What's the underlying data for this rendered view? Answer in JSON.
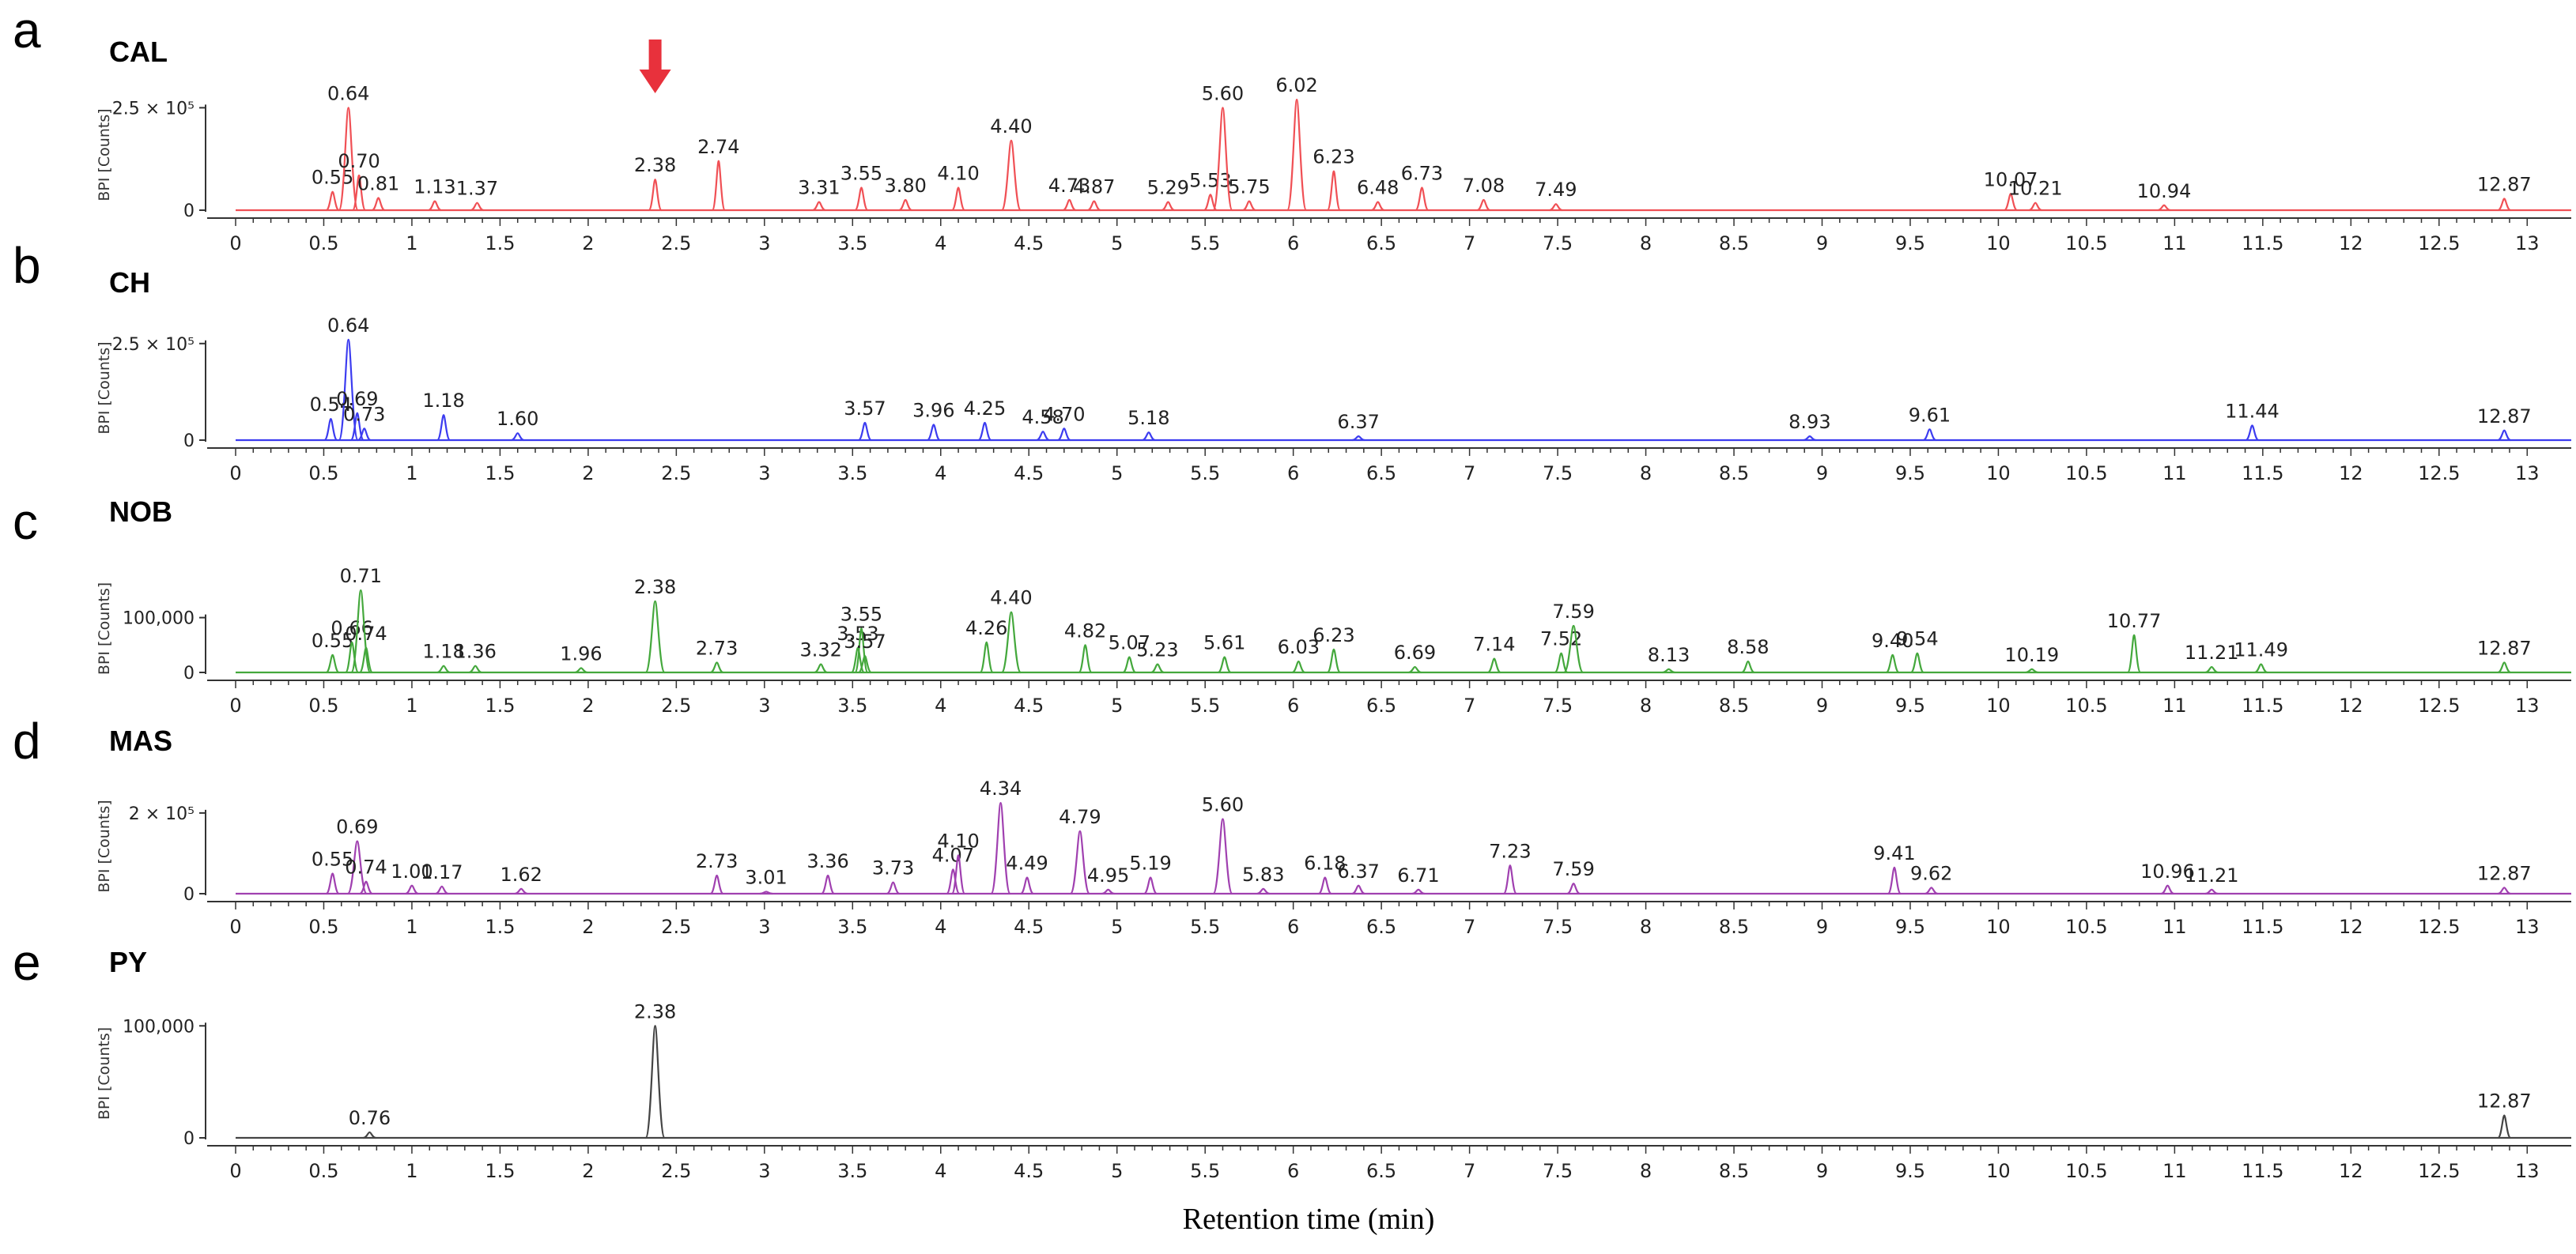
{
  "chart_data": {
    "type": "line",
    "xlabel": "Retention time (min)",
    "x_ticks": [
      "0",
      "0.5",
      "1",
      "1.5",
      "2",
      "2.5",
      "3",
      "3.5",
      "4",
      "4.5",
      "5",
      "5.5",
      "6",
      "6.5",
      "7",
      "7.5",
      "8",
      "8.5",
      "9",
      "9.5",
      "10",
      "10.5",
      "11",
      "11.5",
      "12",
      "12.5",
      "13"
    ],
    "xlim": [
      0,
      13.25
    ],
    "marker": {
      "symbol": "red-down-arrow",
      "panel": "a",
      "x": 2.38,
      "color": "#e8313c"
    },
    "panels": [
      {
        "letter": "a",
        "title": "CAL",
        "ylabel": "BPI [Counts]",
        "color": "#f05055",
        "ymax": 270000,
        "ytick_value": 250000,
        "ytick_label": "2.5 × 10⁵",
        "zero_label": "0",
        "peaks": [
          {
            "x": 0.55,
            "y": 45000,
            "label": "0.55"
          },
          {
            "x": 0.64,
            "y": 250000,
            "label": "0.64"
          },
          {
            "x": 0.7,
            "y": 85000,
            "label": "0.70"
          },
          {
            "x": 0.81,
            "y": 30000,
            "label": "0.81"
          },
          {
            "x": 1.13,
            "y": 22000,
            "label": "1.13"
          },
          {
            "x": 1.37,
            "y": 18000,
            "label": "1.37"
          },
          {
            "x": 2.38,
            "y": 75000,
            "label": "2.38"
          },
          {
            "x": 2.74,
            "y": 120000,
            "label": "2.74"
          },
          {
            "x": 3.31,
            "y": 20000,
            "label": "3.31"
          },
          {
            "x": 3.55,
            "y": 55000,
            "label": "3.55"
          },
          {
            "x": 3.8,
            "y": 25000,
            "label": "3.80"
          },
          {
            "x": 4.1,
            "y": 55000,
            "label": "4.10"
          },
          {
            "x": 4.4,
            "y": 170000,
            "label": "4.40"
          },
          {
            "x": 4.73,
            "y": 25000,
            "label": "4.73"
          },
          {
            "x": 4.87,
            "y": 22000,
            "label": "4.87"
          },
          {
            "x": 5.29,
            "y": 20000,
            "label": "5.29"
          },
          {
            "x": 5.53,
            "y": 38000,
            "label": "5.53"
          },
          {
            "x": 5.6,
            "y": 250000,
            "label": "5.60"
          },
          {
            "x": 5.75,
            "y": 22000,
            "label": "5.75"
          },
          {
            "x": 6.02,
            "y": 270000,
            "label": "6.02"
          },
          {
            "x": 6.23,
            "y": 95000,
            "label": "6.23"
          },
          {
            "x": 6.48,
            "y": 20000,
            "label": "6.48"
          },
          {
            "x": 6.73,
            "y": 55000,
            "label": "6.73"
          },
          {
            "x": 7.08,
            "y": 25000,
            "label": "7.08"
          },
          {
            "x": 7.49,
            "y": 15000,
            "label": "7.49"
          },
          {
            "x": 10.07,
            "y": 40000,
            "label": "10.07"
          },
          {
            "x": 10.21,
            "y": 18000,
            "label": "10.21"
          },
          {
            "x": 10.94,
            "y": 12000,
            "label": "10.94"
          },
          {
            "x": 12.87,
            "y": 28000,
            "label": "12.87"
          }
        ]
      },
      {
        "letter": "b",
        "title": "CH",
        "ylabel": "BPI [Counts]",
        "color": "#3c3cf0",
        "ymax": 270000,
        "ytick_value": 250000,
        "ytick_label": "2.5 × 10⁵",
        "zero_label": "0",
        "peaks": [
          {
            "x": 0.54,
            "y": 55000,
            "label": "0.54"
          },
          {
            "x": 0.64,
            "y": 260000,
            "label": "0.64"
          },
          {
            "x": 0.69,
            "y": 70000,
            "label": "0.69"
          },
          {
            "x": 0.73,
            "y": 30000,
            "label": "0.73"
          },
          {
            "x": 1.18,
            "y": 65000,
            "label": "1.18"
          },
          {
            "x": 1.6,
            "y": 18000,
            "label": "1.60"
          },
          {
            "x": 3.57,
            "y": 45000,
            "label": "3.57"
          },
          {
            "x": 3.96,
            "y": 40000,
            "label": "3.96"
          },
          {
            "x": 4.25,
            "y": 45000,
            "label": "4.25"
          },
          {
            "x": 4.58,
            "y": 22000,
            "label": "4.58"
          },
          {
            "x": 4.7,
            "y": 30000,
            "label": "4.70"
          },
          {
            "x": 5.18,
            "y": 20000,
            "label": "5.18"
          },
          {
            "x": 6.37,
            "y": 10000,
            "label": "6.37"
          },
          {
            "x": 8.93,
            "y": 10000,
            "label": "8.93"
          },
          {
            "x": 9.61,
            "y": 28000,
            "label": "9.61"
          },
          {
            "x": 11.44,
            "y": 38000,
            "label": "11.44"
          },
          {
            "x": 12.87,
            "y": 25000,
            "label": "12.87"
          }
        ]
      },
      {
        "letter": "c",
        "title": "NOB",
        "ylabel": "BPI [Counts]",
        "color": "#44a83c",
        "ymax": 160000,
        "ytick_value": 100000,
        "ytick_label": "100,000",
        "zero_label": "0",
        "peaks": [
          {
            "x": 0.55,
            "y": 32000,
            "label": "0.55"
          },
          {
            "x": 0.66,
            "y": 55000,
            "label": "0.66"
          },
          {
            "x": 0.71,
            "y": 150000,
            "label": "0.71"
          },
          {
            "x": 0.74,
            "y": 45000,
            "label": "0.74"
          },
          {
            "x": 1.18,
            "y": 12000,
            "label": "1.18"
          },
          {
            "x": 1.36,
            "y": 12000,
            "label": "1.36"
          },
          {
            "x": 1.96,
            "y": 8000,
            "label": "1.96"
          },
          {
            "x": 2.38,
            "y": 130000,
            "label": "2.38"
          },
          {
            "x": 2.73,
            "y": 18000,
            "label": "2.73"
          },
          {
            "x": 3.32,
            "y": 15000,
            "label": "3.32"
          },
          {
            "x": 3.53,
            "y": 45000,
            "label": "3.53"
          },
          {
            "x": 3.55,
            "y": 80000,
            "label": "3.55"
          },
          {
            "x": 3.57,
            "y": 30000,
            "label": "3.57"
          },
          {
            "x": 4.26,
            "y": 55000,
            "label": "4.26"
          },
          {
            "x": 4.4,
            "y": 110000,
            "label": "4.40"
          },
          {
            "x": 4.82,
            "y": 50000,
            "label": "4.82"
          },
          {
            "x": 5.07,
            "y": 28000,
            "label": "5.07"
          },
          {
            "x": 5.23,
            "y": 15000,
            "label": "5.23"
          },
          {
            "x": 5.61,
            "y": 28000,
            "label": "5.61"
          },
          {
            "x": 6.03,
            "y": 20000,
            "label": "6.03"
          },
          {
            "x": 6.23,
            "y": 42000,
            "label": "6.23"
          },
          {
            "x": 6.69,
            "y": 10000,
            "label": "6.69"
          },
          {
            "x": 7.14,
            "y": 25000,
            "label": "7.14"
          },
          {
            "x": 7.52,
            "y": 35000,
            "label": "7.52"
          },
          {
            "x": 7.59,
            "y": 85000,
            "label": "7.59"
          },
          {
            "x": 8.13,
            "y": 6000,
            "label": "8.13"
          },
          {
            "x": 8.58,
            "y": 20000,
            "label": "8.58"
          },
          {
            "x": 9.4,
            "y": 32000,
            "label": "9.40"
          },
          {
            "x": 9.54,
            "y": 35000,
            "label": "9.54"
          },
          {
            "x": 10.19,
            "y": 6000,
            "label": "10.19"
          },
          {
            "x": 10.77,
            "y": 68000,
            "label": "10.77"
          },
          {
            "x": 11.21,
            "y": 10000,
            "label": "11.21"
          },
          {
            "x": 11.49,
            "y": 15000,
            "label": "11.49"
          },
          {
            "x": 12.87,
            "y": 18000,
            "label": "12.87"
          }
        ]
      },
      {
        "letter": "d",
        "title": "MAS",
        "ylabel": "BPI [Counts]",
        "color": "#a040b0",
        "ymax": 235000,
        "ytick_value": 200000,
        "ytick_label": "2 × 10⁵",
        "zero_label": "0",
        "peaks": [
          {
            "x": 0.55,
            "y": 50000,
            "label": "0.55"
          },
          {
            "x": 0.69,
            "y": 130000,
            "label": "0.69"
          },
          {
            "x": 0.74,
            "y": 30000,
            "label": "0.74"
          },
          {
            "x": 1.0,
            "y": 20000,
            "label": "1.00"
          },
          {
            "x": 1.17,
            "y": 18000,
            "label": "1.17"
          },
          {
            "x": 1.62,
            "y": 12000,
            "label": "1.62"
          },
          {
            "x": 2.73,
            "y": 45000,
            "label": "2.73"
          },
          {
            "x": 3.01,
            "y": 5000,
            "label": "3.01"
          },
          {
            "x": 3.36,
            "y": 45000,
            "label": "3.36"
          },
          {
            "x": 3.73,
            "y": 28000,
            "label": "3.73"
          },
          {
            "x": 4.07,
            "y": 60000,
            "label": "4.07"
          },
          {
            "x": 4.1,
            "y": 95000,
            "label": "4.10"
          },
          {
            "x": 4.34,
            "y": 225000,
            "label": "4.34"
          },
          {
            "x": 4.49,
            "y": 40000,
            "label": "4.49"
          },
          {
            "x": 4.79,
            "y": 155000,
            "label": "4.79"
          },
          {
            "x": 4.95,
            "y": 10000,
            "label": "4.95"
          },
          {
            "x": 5.19,
            "y": 40000,
            "label": "5.19"
          },
          {
            "x": 5.6,
            "y": 185000,
            "label": "5.60"
          },
          {
            "x": 5.83,
            "y": 12000,
            "label": "5.83"
          },
          {
            "x": 6.18,
            "y": 40000,
            "label": "6.18"
          },
          {
            "x": 6.37,
            "y": 20000,
            "label": "6.37"
          },
          {
            "x": 6.71,
            "y": 10000,
            "label": "6.71"
          },
          {
            "x": 7.23,
            "y": 70000,
            "label": "7.23"
          },
          {
            "x": 7.59,
            "y": 25000,
            "label": "7.59"
          },
          {
            "x": 9.41,
            "y": 65000,
            "label": "9.41"
          },
          {
            "x": 9.62,
            "y": 15000,
            "label": "9.62"
          },
          {
            "x": 10.96,
            "y": 20000,
            "label": "10.96"
          },
          {
            "x": 11.21,
            "y": 10000,
            "label": "11.21"
          },
          {
            "x": 12.87,
            "y": 15000,
            "label": "12.87"
          }
        ]
      },
      {
        "letter": "e",
        "title": "PY",
        "ylabel": "BPI [Counts]",
        "color": "#444444",
        "ymax": 115000,
        "ytick_value": 100000,
        "ytick_label": "100,000",
        "zero_label": "0",
        "peaks": [
          {
            "x": 0.76,
            "y": 5000,
            "label": "0.76"
          },
          {
            "x": 2.38,
            "y": 100000,
            "label": "2.38"
          },
          {
            "x": 12.87,
            "y": 20000,
            "label": "12.87"
          }
        ]
      }
    ]
  }
}
